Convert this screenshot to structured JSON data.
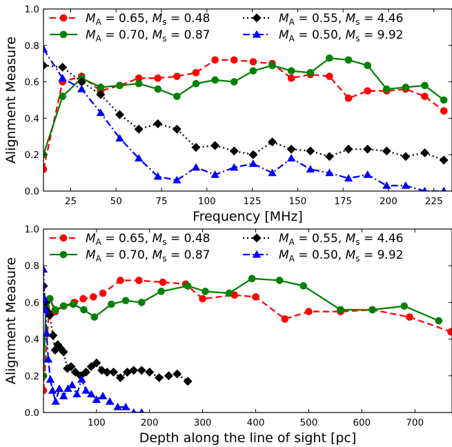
{
  "chart_data": [
    {
      "type": "line",
      "xlabel": "Frequency [MHz]",
      "ylabel": "Alignment Measure",
      "xlim": [
        10,
        235
      ],
      "ylim": [
        0.0,
        1.0
      ],
      "xticks": [
        25,
        50,
        75,
        100,
        125,
        150,
        175,
        200,
        225
      ],
      "xtick_labels": [
        "25",
        "50",
        "75",
        "100",
        "125",
        "150",
        "175",
        "200",
        "225"
      ],
      "yticks": [
        0.0,
        0.2,
        0.4,
        0.6,
        0.8,
        1.0
      ],
      "ytick_labels": [
        "0.0",
        "0.2",
        "0.4",
        "0.6",
        "0.8",
        "1.0"
      ],
      "grid": false,
      "legend_position": "top",
      "series": [
        {
          "label_parts": [
            "M",
            "A",
            " = 0.65,  ",
            "M",
            "s",
            " = 0.48"
          ],
          "color": "#ff0000",
          "marker": "circle",
          "linestyle": "dashed",
          "x": [
            10,
            20.5,
            31,
            41.5,
            52,
            62.5,
            73,
            83.5,
            94,
            104.5,
            115,
            125.5,
            136,
            146.5,
            157,
            167.5,
            178,
            188.5,
            199,
            209.5,
            220,
            230.5
          ],
          "y": [
            0.12,
            0.6,
            0.63,
            0.55,
            0.58,
            0.62,
            0.62,
            0.63,
            0.65,
            0.72,
            0.72,
            0.71,
            0.7,
            0.62,
            0.64,
            0.63,
            0.51,
            0.55,
            0.55,
            0.56,
            0.52,
            0.44
          ]
        },
        {
          "label_parts": [
            "M",
            "A",
            " = 0.70,  ",
            "M",
            "s",
            " = 0.87"
          ],
          "color": "#008000",
          "marker": "circle",
          "linestyle": "solid",
          "x": [
            10,
            20.5,
            31,
            41.5,
            52,
            62.5,
            73,
            83.5,
            94,
            104.5,
            115,
            125.5,
            136,
            146.5,
            157,
            167.5,
            178,
            188.5,
            199,
            209.5,
            220,
            230.5
          ],
          "y": [
            0.2,
            0.52,
            0.62,
            0.57,
            0.58,
            0.59,
            0.56,
            0.52,
            0.59,
            0.61,
            0.6,
            0.66,
            0.69,
            0.66,
            0.65,
            0.73,
            0.72,
            0.69,
            0.56,
            0.57,
            0.58,
            0.5
          ]
        },
        {
          "label_parts": [
            "M",
            "A",
            " = 0.55,  ",
            "M",
            "s",
            " = 4.46"
          ],
          "color": "#000000",
          "marker": "diamond",
          "linestyle": "dotted",
          "x": [
            10,
            20.5,
            31,
            41.5,
            52,
            62.5,
            73,
            83.5,
            94,
            104.5,
            115,
            125.5,
            136,
            146.5,
            157,
            167.5,
            178,
            188.5,
            199,
            209.5,
            220,
            230.5
          ],
          "y": [
            0.69,
            0.68,
            0.6,
            0.53,
            0.42,
            0.34,
            0.37,
            0.34,
            0.24,
            0.25,
            0.22,
            0.2,
            0.27,
            0.23,
            0.22,
            0.19,
            0.23,
            0.23,
            0.22,
            0.19,
            0.21,
            0.17
          ]
        },
        {
          "label_parts": [
            "M",
            "A",
            " = 0.50,  ",
            "M",
            "s",
            " = 9.92"
          ],
          "color": "#0000ff",
          "marker": "triangle",
          "linestyle": "dashdot",
          "x": [
            10,
            20.5,
            31,
            41.5,
            52,
            62.5,
            73,
            83.5,
            94,
            104.5,
            115,
            125.5,
            136,
            146.5,
            157,
            167.5,
            178,
            188.5,
            199,
            209.5,
            220,
            230.5
          ],
          "y": [
            0.78,
            0.62,
            0.56,
            0.43,
            0.29,
            0.18,
            0.08,
            0.06,
            0.13,
            0.09,
            0.13,
            0.15,
            0.1,
            0.18,
            0.12,
            0.1,
            0.07,
            0.09,
            0.03,
            0.03,
            0.0,
            0.0
          ]
        }
      ]
    },
    {
      "type": "line",
      "xlabel": "Depth along the line of sight [pc]",
      "ylabel": "Alignment Measure",
      "xlim": [
        0,
        770
      ],
      "ylim": [
        0.0,
        1.0
      ],
      "xticks": [
        100,
        200,
        300,
        400,
        500,
        600,
        700
      ],
      "xtick_labels": [
        "100",
        "200",
        "300",
        "400",
        "500",
        "600",
        "700"
      ],
      "yticks": [
        0.0,
        0.2,
        0.4,
        0.6,
        0.8,
        1.0
      ],
      "ytick_labels": [
        "0.0",
        "0.2",
        "0.4",
        "0.6",
        "0.8",
        "1.0"
      ],
      "grid": false,
      "legend_position": "top",
      "series": [
        {
          "label_parts": [
            "M",
            "A",
            " = 0.65,  ",
            "M",
            "s",
            " = 0.48"
          ],
          "color": "#ff0000",
          "marker": "circle",
          "linestyle": "dashed",
          "x": [
            0,
            12,
            22,
            38,
            58,
            75,
            94,
            112,
            145,
            180,
            225,
            268,
            300,
            360,
            400,
            455,
            500,
            560,
            620,
            690,
            768
          ],
          "y": [
            0.12,
            0.62,
            0.55,
            0.58,
            0.6,
            0.62,
            0.63,
            0.65,
            0.72,
            0.72,
            0.71,
            0.7,
            0.62,
            0.64,
            0.63,
            0.51,
            0.55,
            0.55,
            0.56,
            0.52,
            0.44
          ]
        },
        {
          "label_parts": [
            "M",
            "A",
            " = 0.70,  ",
            "M",
            "s",
            " = 0.87"
          ],
          "color": "#008000",
          "marker": "circle",
          "linestyle": "solid",
          "x": [
            0,
            5,
            12,
            22,
            38,
            56,
            76,
            96,
            128,
            155,
            185,
            222,
            272,
            305,
            350,
            393,
            445,
            490,
            560,
            620,
            680,
            745
          ],
          "y": [
            0.2,
            0.58,
            0.62,
            0.56,
            0.58,
            0.59,
            0.56,
            0.52,
            0.59,
            0.61,
            0.6,
            0.66,
            0.69,
            0.66,
            0.65,
            0.73,
            0.72,
            0.69,
            0.56,
            0.56,
            0.58,
            0.5
          ]
        },
        {
          "label_parts": [
            "M",
            "A",
            " = 0.55,  ",
            "M",
            "s",
            " = 4.46"
          ],
          "color": "#000000",
          "marker": "diamond",
          "linestyle": "dotted",
          "x": [
            0,
            4,
            8,
            12,
            18,
            22,
            27,
            32,
            38,
            45,
            52,
            60,
            70,
            80,
            90,
            100,
            110,
            120,
            132,
            145,
            158,
            170,
            185,
            200,
            218,
            236,
            252,
            272
          ],
          "y": [
            0.69,
            0.6,
            0.55,
            0.53,
            0.42,
            0.34,
            0.37,
            0.35,
            0.33,
            0.24,
            0.25,
            0.22,
            0.2,
            0.22,
            0.25,
            0.27,
            0.23,
            0.22,
            0.22,
            0.19,
            0.22,
            0.23,
            0.23,
            0.22,
            0.19,
            0.2,
            0.21,
            0.17
          ]
        },
        {
          "label_parts": [
            "M",
            "A",
            " = 0.50,  ",
            "M",
            "s",
            " = 9.92"
          ],
          "color": "#0000ff",
          "marker": "triangle",
          "linestyle": "dashdot",
          "x": [
            0,
            2,
            4,
            6,
            9,
            13,
            17,
            23,
            30,
            38,
            46,
            54,
            63,
            72,
            80,
            90,
            100,
            112,
            125,
            140,
            155,
            170,
            185
          ],
          "y": [
            0.78,
            0.62,
            0.56,
            0.43,
            0.29,
            0.18,
            0.12,
            0.06,
            0.13,
            0.09,
            0.13,
            0.15,
            0.1,
            0.18,
            0.12,
            0.1,
            0.07,
            0.09,
            0.06,
            0.03,
            0.03,
            0.0,
            0.0
          ]
        }
      ]
    }
  ]
}
